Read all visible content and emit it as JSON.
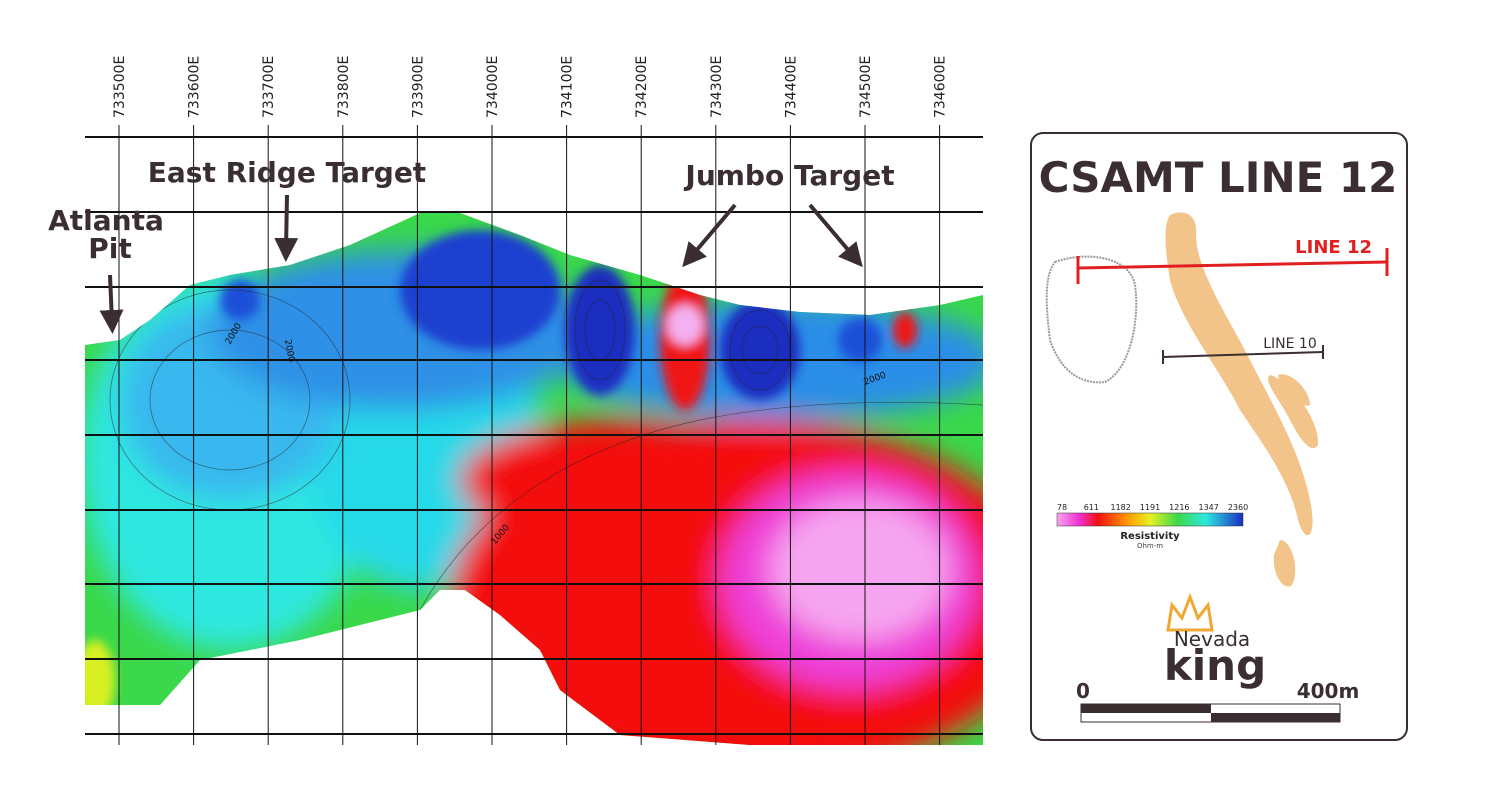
{
  "section": {
    "eastings": [
      "733500E",
      "733600E",
      "733700E",
      "733800E",
      "733900E",
      "734000E",
      "734100E",
      "734200E",
      "734300E",
      "734400E",
      "734500E",
      "734600E"
    ],
    "annotations": {
      "atlanta": [
        "Atlanta",
        "Pit"
      ],
      "east_ridge": "East Ridge Target",
      "jumbo": "Jumbo Target"
    },
    "contour_labels": [
      "2000",
      "2000",
      "2000",
      "1000"
    ]
  },
  "inset": {
    "title": "CSAMT LINE 12",
    "line12": "LINE 12",
    "line10": "LINE 10",
    "legend": {
      "ticks": [
        "78",
        "611",
        "1182",
        "1191",
        "1216",
        "1347",
        "2360"
      ],
      "title": "Resistivity",
      "unit": "Ohm-m"
    },
    "logo": [
      "Nevada",
      "king"
    ],
    "scale": [
      "0",
      "400m"
    ]
  }
}
